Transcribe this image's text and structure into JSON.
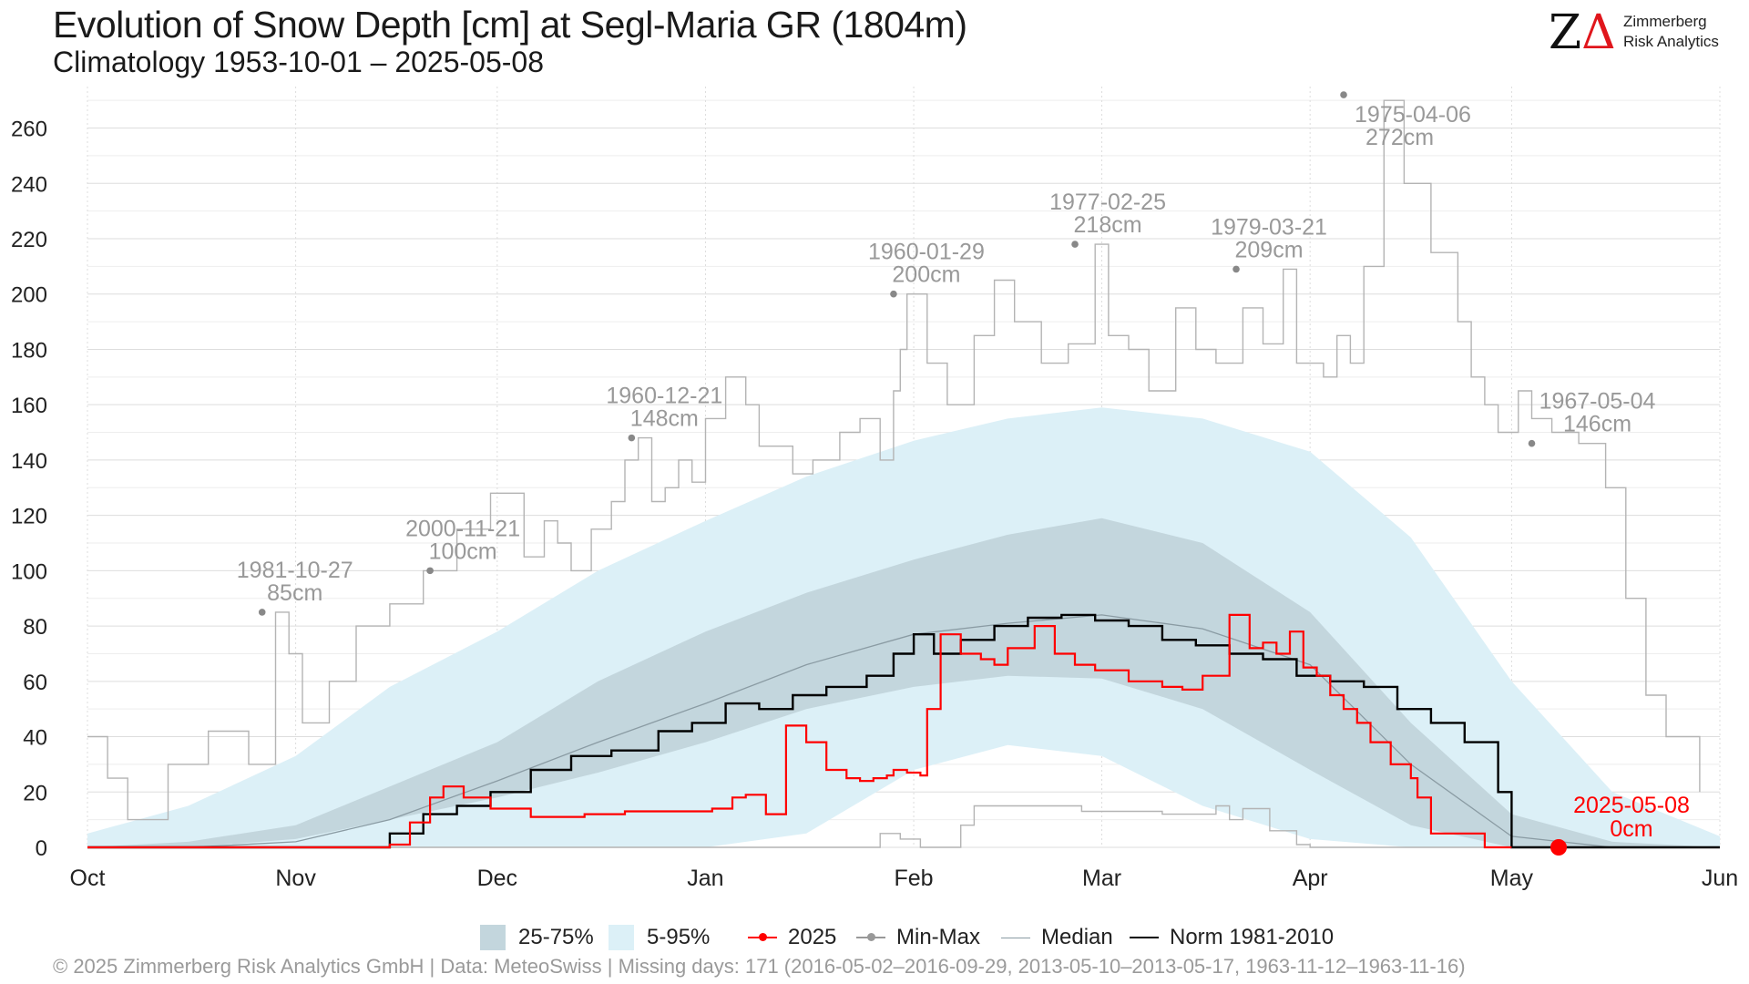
{
  "header": {
    "title": "Evolution of Snow Depth [cm] at Segl-Maria  GR (1804m)",
    "subtitle": "Climatology 1953-10-01 – 2025-05-08"
  },
  "logo": {
    "mark_z": "Z",
    "mark_delta": "Δ",
    "line1": "Zimmerberg",
    "line2": "Risk Analytics"
  },
  "legend": {
    "items": [
      {
        "label": "25-75%",
        "kind": "box",
        "color": "#c3d6dd"
      },
      {
        "label": "5-95%",
        "kind": "box",
        "color": "#dcf0f7"
      },
      {
        "label": "2025",
        "kind": "line-dot",
        "color": "#ff0000"
      },
      {
        "label": "Min-Max",
        "kind": "line-dot",
        "color": "#999999"
      },
      {
        "label": "Median",
        "kind": "line",
        "color": "#8a9ba3"
      },
      {
        "label": "Norm 1981-2010",
        "kind": "line",
        "color": "#000000"
      }
    ]
  },
  "footer": {
    "text": "©  2025 Zimmerberg Risk Analytics GmbH | Data: MeteoSwiss | Missing days: 171 (2016-05-02–2016-09-29, 2013-05-10–2013-05-17, 1963-11-12–1963-11-16)"
  },
  "colors": {
    "band_5_95": "#dcf0f7",
    "band_25_75": "#c3d6dd",
    "current": "#ff0000",
    "max": "#b4b4b4",
    "min": "#b4b4b4",
    "median": "#8a9ba3",
    "norm": "#000000",
    "grid": "#dddddd",
    "annotation": "#999999"
  },
  "chart_data": {
    "type": "line",
    "title": "Evolution of Snow Depth [cm] at Segl-Maria  GR (1804m)",
    "subtitle": "Climatology 1953-10-01 – 2025-05-08",
    "xlim": [
      "Oct 1",
      "Jun 1"
    ],
    "ylim": [
      0,
      275
    ],
    "y_ticks": [
      0,
      20,
      40,
      60,
      80,
      100,
      120,
      140,
      160,
      180,
      200,
      220,
      240,
      260
    ],
    "x_ticks": [
      {
        "label": "Oct",
        "day": 0
      },
      {
        "label": "Nov",
        "day": 31
      },
      {
        "label": "Dec",
        "day": 61
      },
      {
        "label": "Jan",
        "day": 92
      },
      {
        "label": "Feb",
        "day": 123
      },
      {
        "label": "Mar",
        "day": 151
      },
      {
        "label": "Apr",
        "day": 182
      },
      {
        "label": "May",
        "day": 212
      },
      {
        "label": "Jun",
        "day": 243
      }
    ],
    "x_unit": "days since Oct 1",
    "grid": true,
    "legend_position": "bottom",
    "series": [
      {
        "name": "5-95%",
        "kind": "band",
        "x": [
          0,
          15,
          31,
          45,
          61,
          76,
          92,
          107,
          123,
          137,
          151,
          166,
          182,
          197,
          212,
          227,
          243
        ],
        "low": [
          0,
          0,
          0,
          0,
          0,
          0,
          0,
          5,
          28,
          37,
          33,
          15,
          3,
          0,
          0,
          0,
          0
        ],
        "high": [
          5,
          15,
          33,
          58,
          78,
          100,
          118,
          134,
          147,
          155,
          159,
          155,
          143,
          112,
          60,
          20,
          4
        ]
      },
      {
        "name": "25-75%",
        "kind": "band",
        "x": [
          0,
          15,
          31,
          45,
          61,
          76,
          92,
          107,
          123,
          137,
          151,
          166,
          182,
          197,
          212,
          227,
          243
        ],
        "low": [
          0,
          0,
          3,
          10,
          18,
          27,
          38,
          50,
          58,
          62,
          61,
          50,
          28,
          8,
          0,
          0,
          0
        ],
        "high": [
          0,
          2,
          8,
          22,
          38,
          60,
          78,
          92,
          104,
          113,
          119,
          110,
          85,
          45,
          12,
          2,
          0
        ]
      },
      {
        "name": "Median",
        "kind": "line",
        "x": [
          0,
          15,
          31,
          45,
          61,
          76,
          92,
          107,
          123,
          137,
          151,
          166,
          182,
          197,
          212,
          227,
          243
        ],
        "y": [
          0,
          0,
          2,
          10,
          24,
          38,
          52,
          66,
          77,
          81,
          84,
          79,
          66,
          30,
          4,
          0,
          0
        ]
      },
      {
        "name": "Norm 1981-2010",
        "kind": "line",
        "x": [
          0,
          40,
          45,
          50,
          55,
          60,
          66,
          72,
          78,
          85,
          90,
          95,
          100,
          105,
          110,
          116,
          120,
          123,
          126,
          130,
          135,
          140,
          145,
          150,
          155,
          160,
          165,
          170,
          175,
          180,
          185,
          190,
          195,
          200,
          205,
          210,
          212,
          243
        ],
        "y": [
          0,
          0,
          5,
          12,
          15,
          20,
          28,
          33,
          35,
          42,
          45,
          52,
          50,
          55,
          58,
          62,
          70,
          77,
          70,
          75,
          80,
          83,
          84,
          82,
          80,
          75,
          73,
          70,
          68,
          62,
          60,
          58,
          50,
          45,
          38,
          20,
          0,
          0
        ]
      },
      {
        "name": "2025",
        "kind": "line",
        "x": [
          0,
          42,
          45,
          48,
          51,
          53,
          56,
          60,
          66,
          70,
          74,
          77,
          80,
          84,
          88,
          93,
          96,
          98,
          101,
          104,
          107,
          110,
          113,
          115,
          117,
          119,
          120,
          122,
          124,
          125,
          127,
          130,
          133,
          135,
          137,
          141,
          144,
          147,
          150,
          155,
          160,
          163,
          166,
          170,
          173,
          175,
          177,
          179,
          181,
          183,
          185,
          187,
          189,
          191,
          194,
          197,
          198,
          200,
          208,
          211,
          212
        ],
        "y": [
          0,
          0,
          1,
          9,
          18,
          22,
          18,
          14,
          11,
          11,
          12,
          12,
          13,
          13,
          13,
          14,
          18,
          19,
          12,
          44,
          38,
          28,
          25,
          24,
          25,
          26,
          28,
          27,
          26,
          50,
          77,
          70,
          68,
          66,
          72,
          80,
          70,
          66,
          64,
          60,
          58,
          57,
          62,
          84,
          72,
          74,
          70,
          78,
          65,
          62,
          55,
          50,
          45,
          38,
          30,
          25,
          18,
          5,
          0,
          0,
          0
        ]
      },
      {
        "name": "Max",
        "kind": "line",
        "x": [
          0,
          3,
          6,
          12,
          18,
          24,
          28,
          30,
          32,
          36,
          40,
          45,
          50,
          55,
          60,
          65,
          68,
          70,
          72,
          75,
          78,
          80,
          82,
          84,
          86,
          88,
          90,
          92,
          95,
          98,
          100,
          105,
          108,
          112,
          115,
          118,
          120,
          121,
          122,
          125,
          128,
          132,
          135,
          138,
          142,
          146,
          150,
          152,
          155,
          158,
          162,
          165,
          168,
          172,
          175,
          178,
          180,
          184,
          186,
          188,
          190,
          193,
          196,
          200,
          204,
          206,
          208,
          210,
          213,
          215,
          218,
          222,
          226,
          229,
          232,
          235,
          240
        ],
        "y": [
          40,
          25,
          10,
          30,
          42,
          30,
          85,
          70,
          45,
          60,
          80,
          88,
          100,
          115,
          128,
          105,
          118,
          110,
          100,
          115,
          125,
          140,
          148,
          125,
          130,
          140,
          132,
          155,
          170,
          160,
          145,
          135,
          140,
          150,
          155,
          140,
          165,
          180,
          200,
          175,
          160,
          185,
          205,
          190,
          175,
          182,
          218,
          185,
          180,
          165,
          195,
          180,
          175,
          195,
          182,
          209,
          175,
          170,
          185,
          175,
          210,
          270,
          240,
          215,
          190,
          170,
          160,
          150,
          165,
          155,
          150,
          146,
          130,
          90,
          55,
          40,
          20
        ]
      },
      {
        "name": "Min",
        "kind": "line",
        "x": [
          0,
          115,
          118,
          121,
          124,
          128,
          130,
          132,
          148,
          160,
          168,
          170,
          172,
          176,
          180,
          182,
          243
        ],
        "y": [
          0,
          0,
          5,
          3,
          0,
          0,
          8,
          15,
          13,
          12,
          15,
          10,
          14,
          6,
          1,
          0,
          0
        ]
      }
    ],
    "annotations": [
      {
        "date": "1981-10-27",
        "value": "85cm",
        "x": 26,
        "y": 85
      },
      {
        "date": "2000-11-21",
        "value": "100cm",
        "x": 51,
        "y": 100
      },
      {
        "date": "1960-12-21",
        "value": "148cm",
        "x": 81,
        "y": 148
      },
      {
        "date": "1960-01-29",
        "value": "200cm",
        "x": 120,
        "y": 200
      },
      {
        "date": "1977-02-25",
        "value": "218cm",
        "x": 147,
        "y": 218
      },
      {
        "date": "1979-03-21",
        "value": "209cm",
        "x": 171,
        "y": 209
      },
      {
        "date": "1975-04-06",
        "value": "272cm",
        "x": 187,
        "y": 272
      },
      {
        "date": "1967-05-04",
        "value": "146cm",
        "x": 215,
        "y": 146
      }
    ],
    "current": {
      "date": "2025-05-08",
      "value": "0cm",
      "x": 219,
      "y": 0
    }
  }
}
